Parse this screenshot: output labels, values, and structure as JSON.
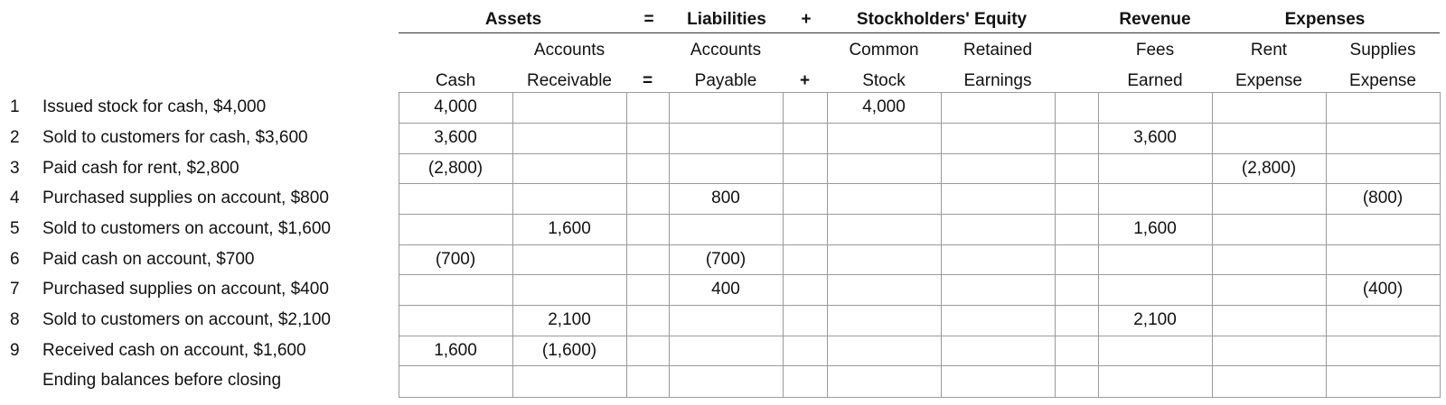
{
  "header": {
    "assets": "Assets",
    "eq1": "=",
    "liabilities": "Liabilities",
    "plus1": "+",
    "equity": "Stockholders' Equity",
    "revenue": "Revenue",
    "expenses": "Expenses"
  },
  "columns": [
    {
      "line1": "",
      "line2": "Cash"
    },
    {
      "line1": "Accounts",
      "line2": "Receivable"
    },
    {
      "line1": "",
      "line2": "="
    },
    {
      "line1": "Accounts",
      "line2": "Payable"
    },
    {
      "line1": "",
      "line2": "+"
    },
    {
      "line1": "Common",
      "line2": "Stock"
    },
    {
      "line1": "Retained",
      "line2": "Earnings"
    },
    {
      "line1": "",
      "line2": ""
    },
    {
      "line1": "Fees",
      "line2": "Earned"
    },
    {
      "line1": "Rent",
      "line2": "Expense"
    },
    {
      "line1": "Supplies",
      "line2": "Expense"
    }
  ],
  "rows": [
    {
      "num": "1",
      "desc": "Issued stock for cash, $4,000",
      "cells": [
        "4,000",
        "",
        "",
        "",
        "",
        "4,000",
        "",
        "",
        "",
        "",
        ""
      ]
    },
    {
      "num": "2",
      "desc": "Sold to customers for cash, $3,600",
      "cells": [
        "3,600",
        "",
        "",
        "",
        "",
        "",
        "",
        "",
        "3,600",
        "",
        ""
      ]
    },
    {
      "num": "3",
      "desc": "Paid cash for rent, $2,800",
      "cells": [
        "(2,800)",
        "",
        "",
        "",
        "",
        "",
        "",
        "",
        "",
        "(2,800)",
        ""
      ]
    },
    {
      "num": "4",
      "desc": "Purchased supplies on account, $800",
      "cells": [
        "",
        "",
        "",
        "800",
        "",
        "",
        "",
        "",
        "",
        "",
        "(800)"
      ]
    },
    {
      "num": "5",
      "desc": "Sold to customers on account, $1,600",
      "cells": [
        "",
        "1,600",
        "",
        "",
        "",
        "",
        "",
        "",
        "1,600",
        "",
        ""
      ]
    },
    {
      "num": "6",
      "desc": "Paid cash on account, $700",
      "cells": [
        "(700)",
        "",
        "",
        "(700)",
        "",
        "",
        "",
        "",
        "",
        "",
        ""
      ]
    },
    {
      "num": "7",
      "desc": "Purchased supplies on account, $400",
      "cells": [
        "",
        "",
        "",
        "400",
        "",
        "",
        "",
        "",
        "",
        "",
        "(400)"
      ]
    },
    {
      "num": "8",
      "desc": "Sold to customers on account, $2,100",
      "cells": [
        "",
        "2,100",
        "",
        "",
        "",
        "",
        "",
        "",
        "2,100",
        "",
        ""
      ]
    },
    {
      "num": "9",
      "desc": "Received cash on account, $1,600",
      "cells": [
        "1,600",
        "(1,600)",
        "",
        "",
        "",
        "",
        "",
        "",
        "",
        "",
        ""
      ]
    },
    {
      "num": "",
      "desc": "Ending balances before closing",
      "cells": [
        "",
        "",
        "",
        "",
        "",
        "",
        "",
        "",
        "",
        "",
        ""
      ]
    }
  ]
}
